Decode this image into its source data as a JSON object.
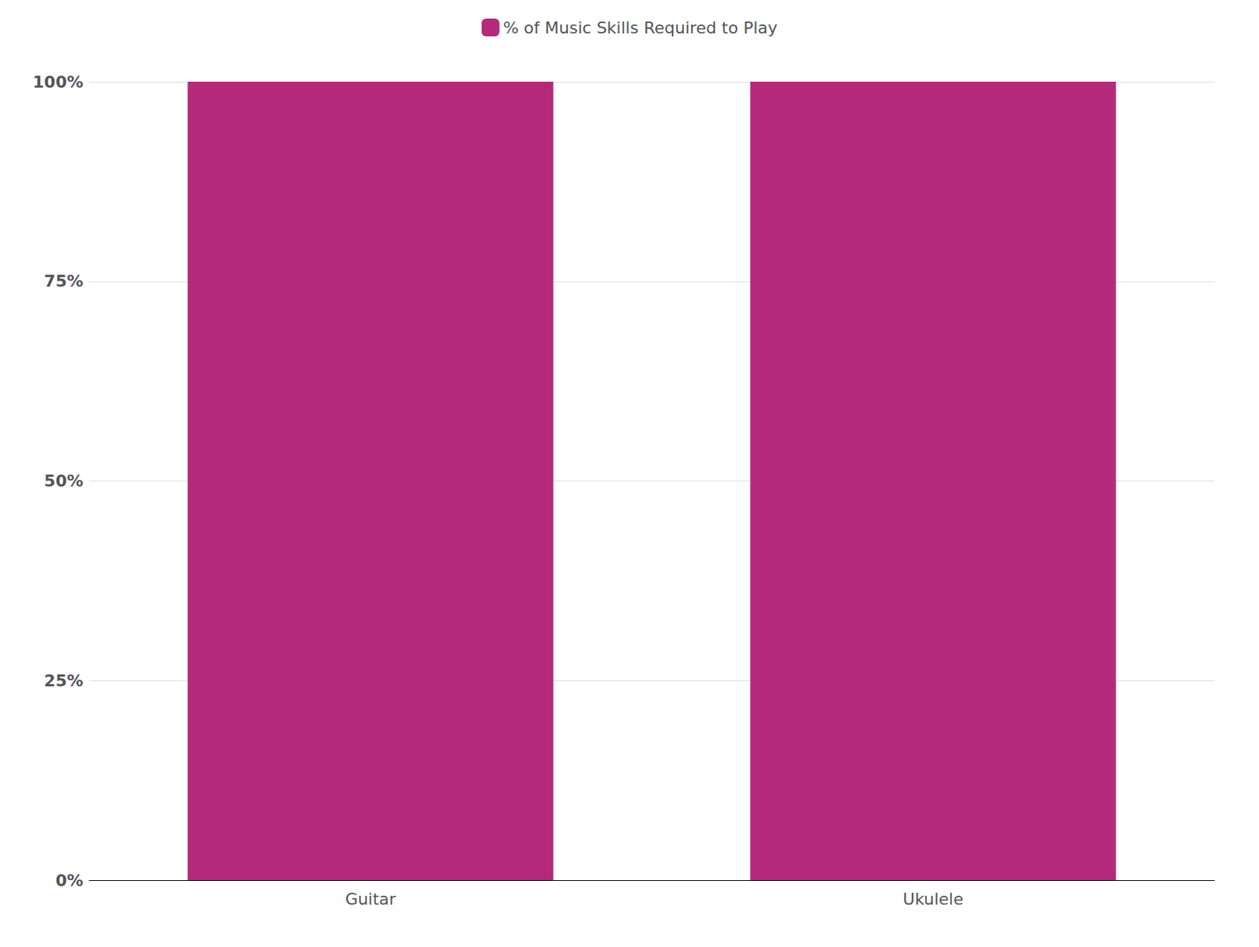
{
  "chart_data": {
    "type": "bar",
    "categories": [
      "Guitar",
      "Ukulele"
    ],
    "series": [
      {
        "name": "% of Music Skills Required to Play",
        "color": "#b5297a",
        "values": [
          100,
          100
        ]
      }
    ],
    "ylim": [
      0,
      100
    ],
    "yticks": [
      {
        "value": 0,
        "label": "0%"
      },
      {
        "value": 25,
        "label": "25%"
      },
      {
        "value": 50,
        "label": "50%"
      },
      {
        "value": 75,
        "label": "75%"
      },
      {
        "value": 100,
        "label": "100%"
      }
    ],
    "grid": true,
    "legend": "top"
  }
}
